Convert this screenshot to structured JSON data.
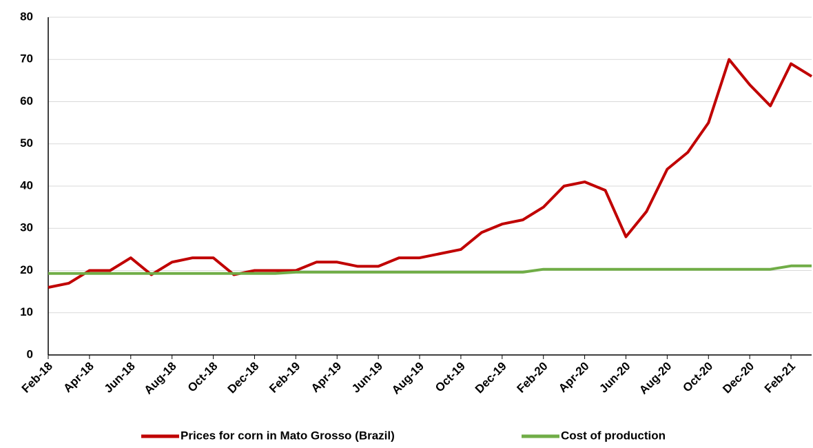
{
  "chart_data": {
    "type": "line",
    "categories": [
      "Feb-18",
      null,
      "Apr-18",
      null,
      "Jun-18",
      null,
      "Aug-18",
      null,
      "Oct-18",
      null,
      "Dec-18",
      null,
      "Feb-19",
      null,
      "Apr-19",
      null,
      "Jun-19",
      null,
      "Aug-19",
      null,
      "Oct-19",
      null,
      "Dec-19",
      null,
      "Feb-20",
      null,
      "Apr-20",
      null,
      "Jun-20",
      null,
      "Aug-20",
      null,
      "Oct-20",
      null,
      "Dec-20",
      null,
      "Feb-21",
      null
    ],
    "series": [
      {
        "name": "Prices for corn in Mato Grosso (Brazil)",
        "color": "#c00000",
        "values": [
          16,
          17,
          20,
          20,
          23,
          19,
          22,
          23,
          23,
          19,
          20,
          20,
          20,
          22,
          22,
          21,
          21,
          23,
          23,
          24,
          25,
          29,
          31,
          32,
          35,
          40,
          41,
          39,
          28,
          34,
          44,
          48,
          55,
          70,
          64,
          59,
          69,
          66
        ]
      },
      {
        "name": "Cost of production",
        "color": "#70ad47",
        "values": [
          19.3,
          19.3,
          19.3,
          19.3,
          19.3,
          19.3,
          19.3,
          19.3,
          19.3,
          19.3,
          19.3,
          19.3,
          19.6,
          19.6,
          19.6,
          19.6,
          19.6,
          19.6,
          19.6,
          19.6,
          19.6,
          19.6,
          19.6,
          19.6,
          20.3,
          20.3,
          20.3,
          20.3,
          20.3,
          20.3,
          20.3,
          20.3,
          20.3,
          20.3,
          20.3,
          20.3,
          21.1,
          21.1
        ]
      }
    ],
    "ylim": [
      0,
      80
    ],
    "yticks": [
      0,
      10,
      20,
      30,
      40,
      50,
      60,
      70,
      80
    ],
    "grid": true,
    "legend": "bottom"
  }
}
